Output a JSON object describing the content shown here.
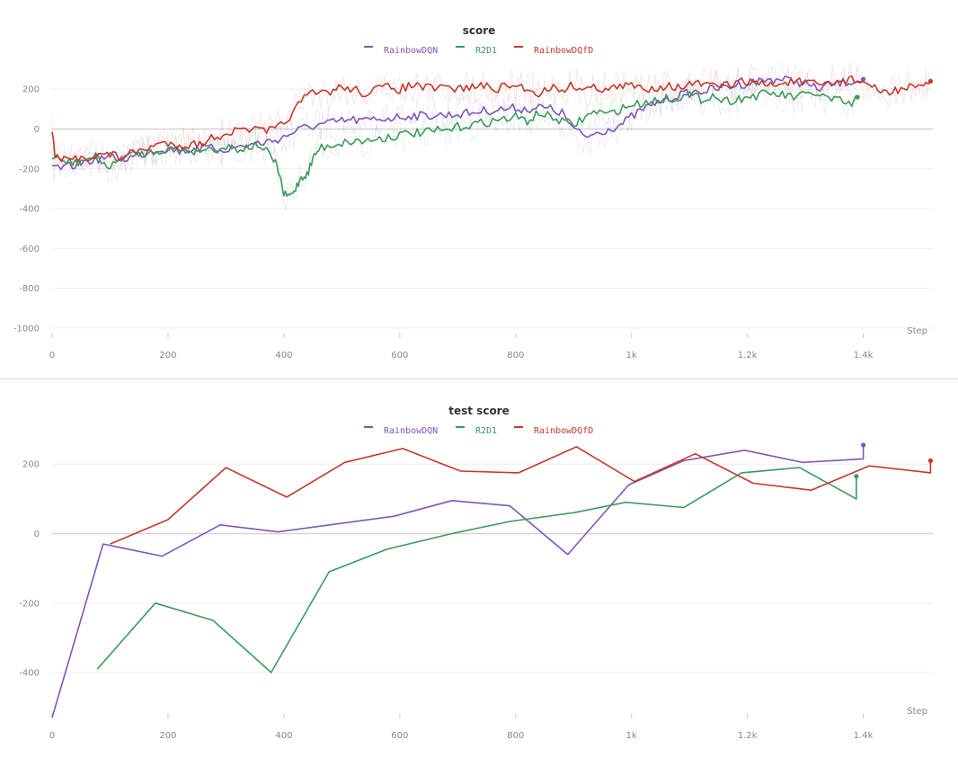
{
  "colors": {
    "RainbowDQN": "#7f57b8",
    "R2D1": "#3e9a5c",
    "RainbowDQfD": "#c23b2c",
    "grid": "#eeeeee",
    "zero": "#d6d6d6",
    "tick_text": "#888888"
  },
  "chart_data": [
    {
      "type": "line",
      "title": "score",
      "xlabel": "Step",
      "ylabel": "",
      "xlim": [
        0,
        1520
      ],
      "ylim": [
        -1000,
        300
      ],
      "x_ticks": [
        0,
        200,
        400,
        600,
        800,
        1000,
        1200,
        1400
      ],
      "x_tick_labels": [
        "0",
        "200",
        "400",
        "600",
        "800",
        "1k",
        "1.2k",
        "1.4k"
      ],
      "y_ticks": [
        200,
        0,
        -200,
        -400,
        -600,
        -800,
        -1000
      ],
      "y_tick_labels": [
        "200",
        "0",
        "-200",
        "-400",
        "-600",
        "-800",
        "-1000"
      ],
      "legend": [
        "RainbowDQN",
        "R2D1",
        "RainbowDQfD"
      ],
      "legend_position": "top-center",
      "grid": true,
      "smoothed_with_raw_shadow": true,
      "series": [
        {
          "name": "RainbowDQN",
          "x": [
            0,
            20,
            40,
            60,
            80,
            100,
            120,
            140,
            160,
            180,
            200,
            220,
            240,
            260,
            280,
            300,
            320,
            340,
            360,
            380,
            400,
            420,
            440,
            460,
            480,
            500,
            520,
            540,
            560,
            580,
            600,
            620,
            640,
            660,
            680,
            700,
            720,
            740,
            760,
            780,
            800,
            820,
            840,
            860,
            880,
            900,
            920,
            940,
            960,
            980,
            1000,
            1020,
            1040,
            1060,
            1080,
            1100,
            1120,
            1140,
            1160,
            1180,
            1200,
            1220,
            1240,
            1260,
            1280,
            1300,
            1320,
            1340,
            1360,
            1380,
            1400
          ],
          "values": [
            -190,
            -200,
            -180,
            -160,
            -150,
            -140,
            -150,
            -140,
            -120,
            -100,
            -100,
            -110,
            -100,
            -95,
            -100,
            -100,
            -90,
            -80,
            -70,
            -60,
            -40,
            -10,
            10,
            20,
            30,
            40,
            45,
            40,
            50,
            55,
            60,
            70,
            65,
            70,
            70,
            75,
            80,
            90,
            95,
            100,
            105,
            100,
            110,
            100,
            80,
            0,
            -40,
            -20,
            0,
            20,
            60,
            100,
            130,
            150,
            170,
            180,
            190,
            200,
            210,
            220,
            230,
            240,
            250,
            250,
            240,
            230,
            200,
            220,
            230,
            240,
            250
          ]
        },
        {
          "name": "R2D1",
          "x": [
            0,
            20,
            40,
            60,
            80,
            100,
            120,
            140,
            160,
            180,
            200,
            220,
            240,
            260,
            280,
            300,
            320,
            340,
            360,
            380,
            390,
            400,
            410,
            420,
            430,
            440,
            450,
            460,
            480,
            500,
            520,
            540,
            560,
            580,
            600,
            620,
            640,
            660,
            680,
            700,
            720,
            740,
            760,
            780,
            800,
            820,
            840,
            860,
            880,
            900,
            920,
            940,
            960,
            980,
            1000,
            1020,
            1040,
            1060,
            1080,
            1100,
            1120,
            1140,
            1160,
            1180,
            1200,
            1220,
            1240,
            1260,
            1280,
            1300,
            1320,
            1340,
            1360,
            1380,
            1390
          ],
          "values": [
            -150,
            -160,
            -170,
            -150,
            -140,
            -200,
            -140,
            -130,
            -120,
            -110,
            -100,
            -100,
            -110,
            -100,
            -100,
            -90,
            -100,
            -90,
            -80,
            -150,
            -200,
            -330,
            -340,
            -300,
            -240,
            -230,
            -150,
            -100,
            -80,
            -70,
            -60,
            -60,
            -50,
            -40,
            -30,
            -20,
            -20,
            -10,
            -10,
            10,
            20,
            30,
            40,
            50,
            60,
            40,
            80,
            60,
            40,
            20,
            60,
            90,
            70,
            100,
            120,
            130,
            140,
            150,
            160,
            170,
            150,
            170,
            140,
            150,
            160,
            170,
            180,
            170,
            160,
            170,
            180,
            150,
            140,
            120,
            160
          ]
        },
        {
          "name": "RainbowDQfD",
          "x": [
            0,
            5,
            20,
            40,
            60,
            80,
            100,
            120,
            140,
            160,
            180,
            200,
            220,
            240,
            260,
            280,
            300,
            320,
            340,
            360,
            380,
            400,
            420,
            440,
            460,
            480,
            500,
            520,
            540,
            560,
            580,
            600,
            620,
            640,
            660,
            680,
            700,
            720,
            740,
            760,
            780,
            800,
            820,
            840,
            860,
            880,
            900,
            920,
            940,
            960,
            980,
            1000,
            1020,
            1040,
            1060,
            1080,
            1100,
            1120,
            1140,
            1160,
            1180,
            1200,
            1220,
            1240,
            1260,
            1280,
            1300,
            1320,
            1340,
            1360,
            1380,
            1400,
            1420,
            1440,
            1460,
            1480,
            1500,
            1516
          ],
          "values": [
            0,
            -140,
            -160,
            -150,
            -140,
            -130,
            -130,
            -140,
            -120,
            -100,
            -80,
            -70,
            -80,
            -80,
            -70,
            -40,
            -20,
            -10,
            0,
            -10,
            -10,
            30,
            100,
            170,
            180,
            190,
            210,
            200,
            180,
            200,
            210,
            200,
            220,
            210,
            200,
            210,
            200,
            210,
            220,
            200,
            210,
            220,
            200,
            180,
            210,
            200,
            220,
            200,
            210,
            200,
            210,
            220,
            200,
            210,
            220,
            210,
            220,
            230,
            210,
            220,
            230,
            240,
            230,
            220,
            230,
            240,
            230,
            220,
            230,
            240,
            250,
            240,
            200,
            180,
            200,
            210,
            200,
            240
          ]
        }
      ]
    },
    {
      "type": "line",
      "title": "test score",
      "xlabel": "Step",
      "ylabel": "",
      "xlim": [
        0,
        1520
      ],
      "ylim": [
        -530,
        320
      ],
      "x_ticks": [
        0,
        200,
        400,
        600,
        800,
        1000,
        1200,
        1400
      ],
      "x_tick_labels": [
        "0",
        "200",
        "400",
        "600",
        "800",
        "1k",
        "1.2k",
        "1.4k"
      ],
      "y_ticks": [
        200,
        0,
        -200,
        -400
      ],
      "y_tick_labels": [
        "200",
        "0",
        "-200",
        "-400"
      ],
      "legend": [
        "RainbowDQN",
        "R2D1",
        "RainbowDQfD"
      ],
      "legend_position": "top-center",
      "grid": true,
      "series": [
        {
          "name": "RainbowDQN",
          "x": [
            0,
            88,
            190,
            290,
            390,
            590,
            690,
            790,
            890,
            995,
            1090,
            1195,
            1295,
            1400,
            1400
          ],
          "values": [
            -530,
            -30,
            -65,
            25,
            5,
            50,
            95,
            80,
            -60,
            140,
            210,
            240,
            205,
            215,
            255
          ]
        },
        {
          "name": "R2D1",
          "x": [
            78,
            178,
            278,
            378,
            478,
            578,
            690,
            790,
            900,
            990,
            1090,
            1190,
            1290,
            1388,
            1388
          ],
          "values": [
            -390,
            -200,
            -250,
            -400,
            -110,
            -45,
            0,
            35,
            60,
            90,
            75,
            175,
            190,
            100,
            165
          ]
        },
        {
          "name": "RainbowDQfD",
          "x": [
            100,
            200,
            300,
            405,
            505,
            605,
            705,
            805,
            905,
            1005,
            1110,
            1210,
            1310,
            1410,
            1516,
            1516
          ],
          "values": [
            -30,
            40,
            190,
            105,
            205,
            245,
            180,
            175,
            250,
            150,
            230,
            145,
            125,
            195,
            175,
            210
          ]
        }
      ]
    }
  ]
}
